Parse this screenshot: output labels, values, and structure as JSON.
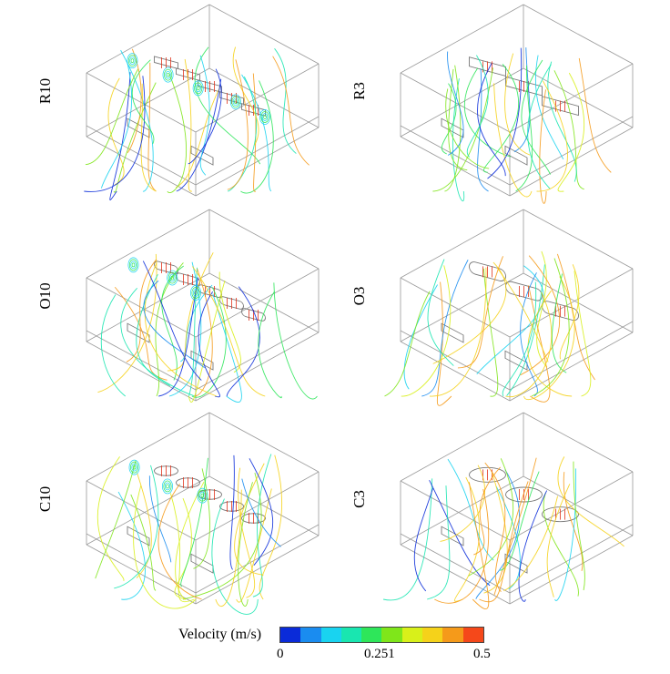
{
  "panels": [
    {
      "label": "R10",
      "inlets": "rect",
      "eddies": true
    },
    {
      "label": "R3",
      "inlets": "rect",
      "eddies": false
    },
    {
      "label": "O10",
      "inlets": "oval",
      "eddies": true
    },
    {
      "label": "O3",
      "inlets": "oval",
      "eddies": false
    },
    {
      "label": "C10",
      "inlets": "circle",
      "eddies": true
    },
    {
      "label": "C3",
      "inlets": "circle",
      "eddies": false
    }
  ],
  "legend": {
    "title": "Velocity (m/s)",
    "min": "0",
    "mid": "0.251",
    "max": "0.5",
    "colors": [
      "#0a2bd9",
      "#1a8cf0",
      "#19d3f0",
      "#19e6b0",
      "#2ee65a",
      "#7fe61a",
      "#d8f01a",
      "#f5d21a",
      "#f59a1a",
      "#f5481a"
    ]
  }
}
